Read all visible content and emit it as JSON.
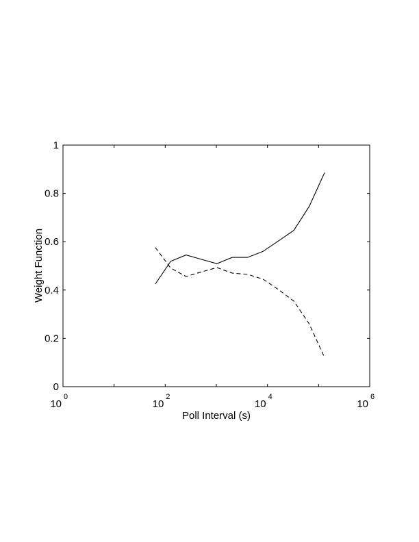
{
  "chart_data": {
    "type": "line",
    "title": "",
    "xlabel": "Poll Interval (s)",
    "ylabel": "Weight Function",
    "xscale": "log",
    "xlim": [
      1,
      1000000
    ],
    "ylim": [
      0,
      1
    ],
    "grid": false,
    "x_ticks": [
      {
        "value": 1,
        "base": "10",
        "exp": "0"
      },
      {
        "value": 100,
        "base": "10",
        "exp": "2"
      },
      {
        "value": 10000,
        "base": "10",
        "exp": "4"
      },
      {
        "value": 1000000,
        "base": "10",
        "exp": "6"
      }
    ],
    "x_minor_ticks": [
      10,
      1000,
      100000
    ],
    "y_ticks": [
      "0",
      "0.2",
      "0.4",
      "0.6",
      "0.8",
      "1"
    ],
    "y_tick_values": [
      0,
      0.2,
      0.4,
      0.6,
      0.8,
      1
    ],
    "x": [
      64,
      128,
      256,
      512,
      1024,
      2048,
      4096,
      8192,
      16384,
      32768,
      65536,
      131072
    ],
    "series": [
      {
        "style": "solid",
        "color": "#000000",
        "values": [
          0.425,
          0.519,
          0.545,
          0.527,
          0.509,
          0.535,
          0.535,
          0.56,
          0.603,
          0.647,
          0.746,
          0.886
        ]
      },
      {
        "style": "dashed",
        "color": "#000000",
        "values": [
          0.576,
          0.491,
          0.456,
          0.475,
          0.493,
          0.47,
          0.465,
          0.445,
          0.402,
          0.354,
          0.26,
          0.12
        ]
      }
    ]
  }
}
